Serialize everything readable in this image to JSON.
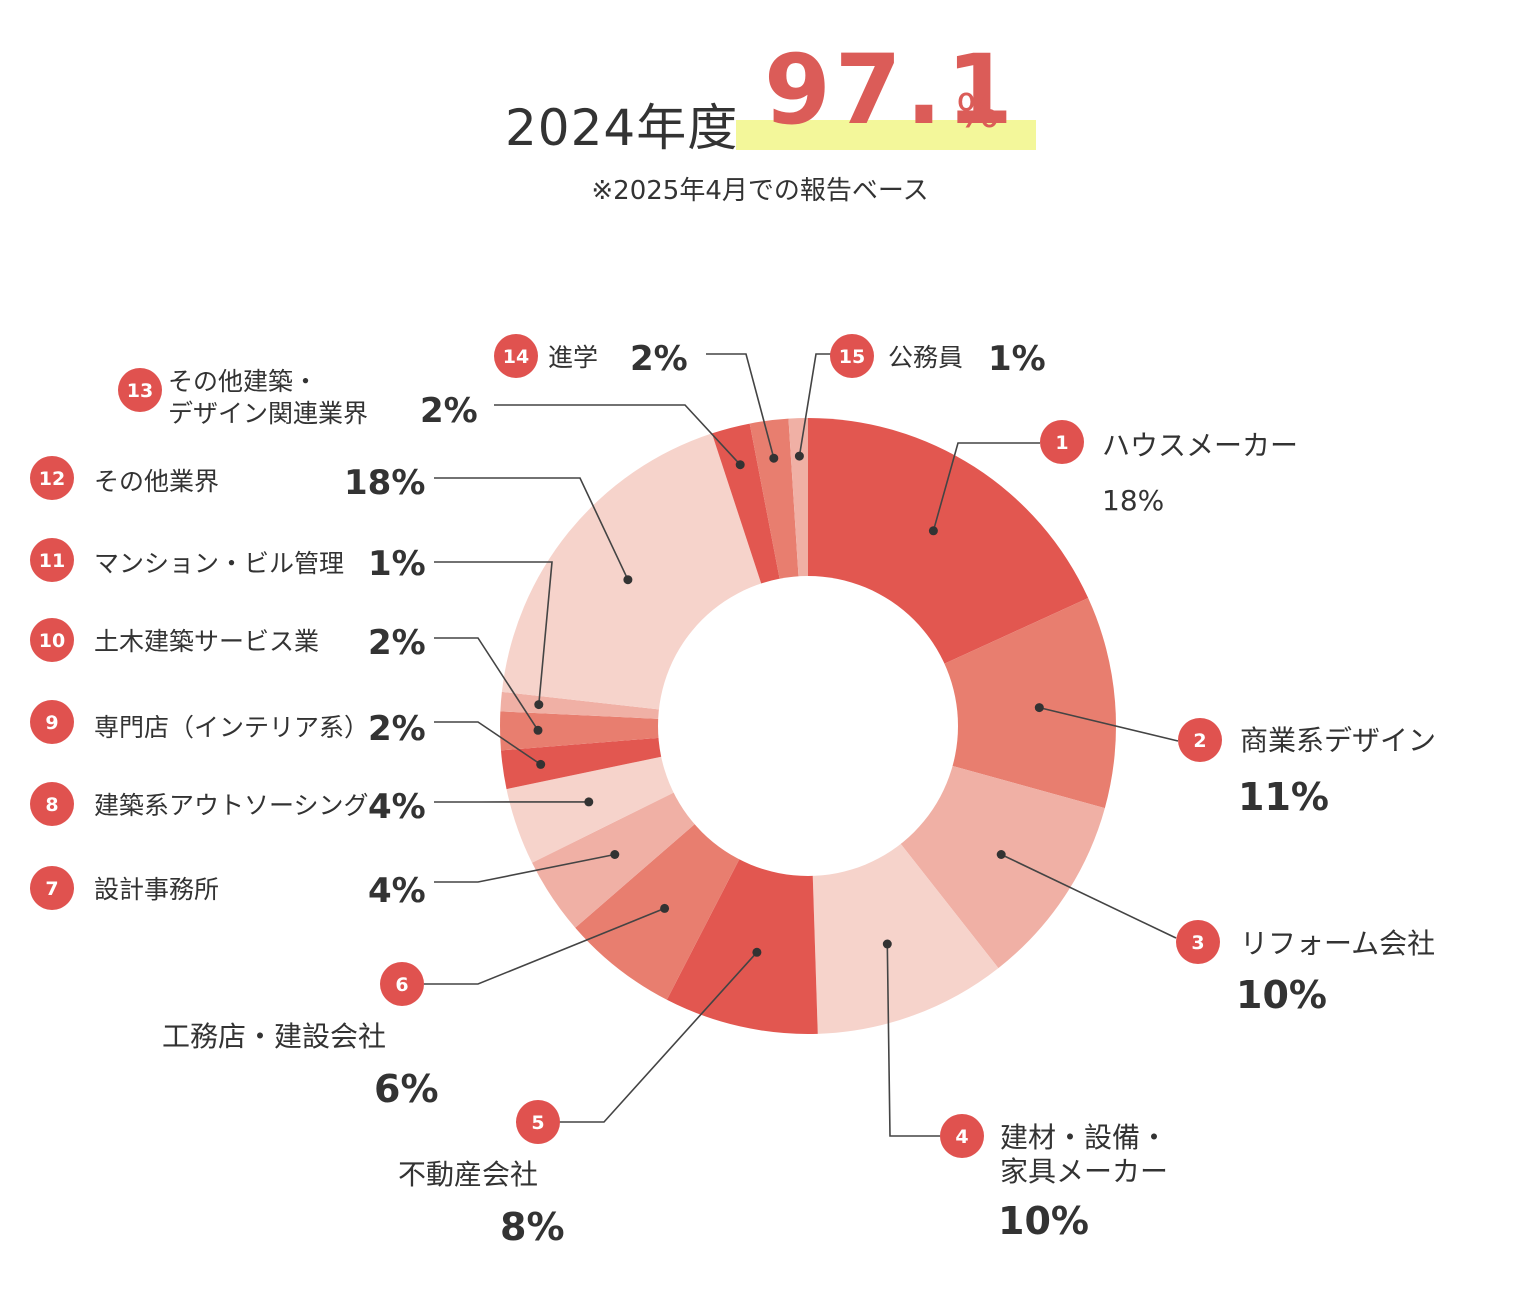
{
  "header": {
    "year_label": "2024年度",
    "rate_value": "97.1",
    "rate_unit": "%",
    "note": "※2025年4月での報告ベース"
  },
  "colors": {
    "accent": "#db5c58",
    "highlight": "#f3f79a",
    "badge": "#e0524f",
    "shade_dark": "#e25750",
    "shade_mid": "#e87e6f",
    "shade_light": "#f0b0a5",
    "shade_pale": "#f6d3cb"
  },
  "chart_data": {
    "type": "pie",
    "variant": "donut",
    "unit": "%",
    "slices": [
      {
        "number": "1",
        "name": "ハウスメーカー",
        "value": 18,
        "value_label": "18%",
        "color": "#e25750"
      },
      {
        "number": "2",
        "name": "商業系デザイン",
        "value": 11,
        "value_label": "11%",
        "color": "#e87e6f"
      },
      {
        "number": "3",
        "name": "リフォーム会社",
        "value": 10,
        "value_label": "10%",
        "color": "#f0b0a5"
      },
      {
        "number": "4",
        "name": "建材・設備・家具メーカー",
        "name_lines": [
          "建材・設備・",
          "家具メーカー"
        ],
        "value": 10,
        "value_label": "10%",
        "color": "#f6d3cb"
      },
      {
        "number": "5",
        "name": "不動産会社",
        "value": 8,
        "value_label": "8%",
        "color": "#e25750"
      },
      {
        "number": "6",
        "name": "工務店・建設会社",
        "value": 6,
        "value_label": "6%",
        "color": "#e87e6f"
      },
      {
        "number": "7",
        "name": "設計事務所",
        "value": 4,
        "value_label": "4%",
        "color": "#f0b0a5"
      },
      {
        "number": "8",
        "name": "建築系アウトソーシング",
        "value": 4,
        "value_label": "4%",
        "color": "#f6d3cb"
      },
      {
        "number": "9",
        "name": "専門店（インテリア系）",
        "value": 2,
        "value_label": "2%",
        "color": "#e25750"
      },
      {
        "number": "10",
        "name": "土木建築サービス業",
        "value": 2,
        "value_label": "2%",
        "color": "#e87e6f"
      },
      {
        "number": "11",
        "name": "マンション・ビル管理",
        "value": 1,
        "value_label": "1%",
        "color": "#f0b0a5"
      },
      {
        "number": "12",
        "name": "その他業界",
        "value": 18,
        "value_label": "18%",
        "color": "#f6d3cb"
      },
      {
        "number": "13",
        "name": "その他建築・デザイン関連業界",
        "name_lines": [
          "その他建築・",
          "デザイン関連業界"
        ],
        "value": 2,
        "value_label": "2%",
        "color": "#e25750"
      },
      {
        "number": "14",
        "name": "進学",
        "value": 2,
        "value_label": "2%",
        "color": "#e87e6f"
      },
      {
        "number": "15",
        "name": "公務員",
        "value": 1,
        "value_label": "1%",
        "color": "#f0b0a5"
      }
    ]
  }
}
